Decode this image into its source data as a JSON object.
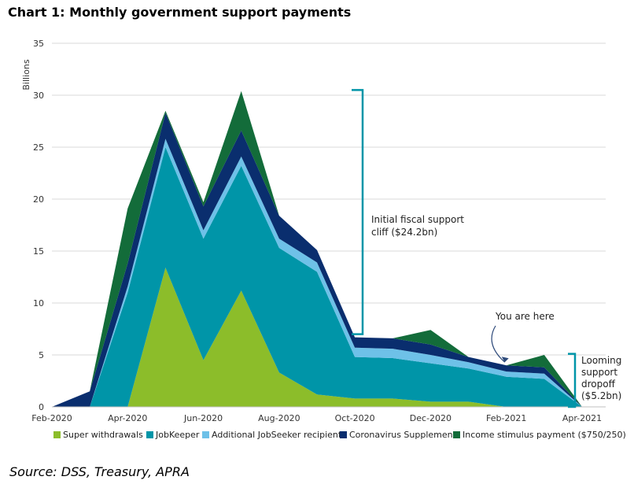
{
  "title": "Chart 1: Monthly government support payments",
  "source": "Source: DSS, Treasury, APRA",
  "chart_data": {
    "type": "area",
    "stacked": true,
    "ylabel": "Billions",
    "xlabel": "",
    "ylim": [
      0,
      35
    ],
    "yticks": [
      0,
      5,
      10,
      15,
      20,
      25,
      30,
      35
    ],
    "x": [
      "Feb-2020",
      "Mar-2020",
      "Apr-2020",
      "May-2020",
      "Jun-2020",
      "Jul-2020",
      "Aug-2020",
      "Sep-2020",
      "Oct-2020",
      "Nov-2020",
      "Dec-2020",
      "Jan-2021",
      "Feb-2021",
      "Mar-2021",
      "Apr-2021"
    ],
    "xtick_labels": [
      "Feb-2020",
      "Apr-2020",
      "Jun-2020",
      "Aug-2020",
      "Oct-2020",
      "Dec-2020",
      "Feb-2021",
      "Apr-2021"
    ],
    "grid": true,
    "legend_position": "bottom",
    "series": [
      {
        "name": "Super withdrawals",
        "color": "#8cbd2a",
        "values": [
          0,
          0,
          0,
          13.4,
          4.5,
          11.2,
          3.3,
          1.2,
          0.8,
          0.8,
          0.5,
          0.5,
          0,
          0,
          0
        ]
      },
      {
        "name": "JobKeeper",
        "color": "#0095a8",
        "values": [
          0,
          0,
          11,
          11.6,
          11.7,
          12,
          12,
          11.8,
          4,
          3.9,
          3.7,
          3.2,
          2.9,
          2.7,
          0
        ]
      },
      {
        "name": "Additional JobSeeker recipients",
        "color": "#6ec1e8",
        "values": [
          0,
          0,
          0.6,
          0.8,
          0.8,
          0.9,
          0.9,
          0.9,
          0.9,
          0.9,
          0.8,
          0.6,
          0.5,
          0.5,
          0
        ]
      },
      {
        "name": "Coronavirus Supplement",
        "color": "#0a2e6e",
        "values": [
          0,
          1.5,
          2.2,
          2.5,
          2.3,
          2.5,
          2.2,
          1.2,
          1,
          1,
          1,
          0.5,
          0.6,
          0.6,
          0
        ]
      },
      {
        "name": "Income stimulus payment ($750/250)",
        "color": "#136c3a",
        "values": [
          0,
          0,
          5.3,
          0.2,
          0.4,
          3.8,
          0,
          0,
          0,
          0,
          1.4,
          0,
          0,
          1.2,
          0
        ]
      }
    ],
    "annotations": [
      {
        "text_lines": [
          "Initial fiscal support",
          "cliff ($24.2bn)"
        ],
        "bracket_range": [
          7,
          30.5
        ],
        "bracket_color": "#0095a8"
      },
      {
        "text_lines": [
          "You are here"
        ],
        "arrow_to": "Feb-2021"
      },
      {
        "text_lines": [
          "Looming",
          "support",
          "dropoff",
          "($5.2bn)"
        ],
        "bracket_range": [
          0,
          5.1
        ],
        "bracket_color": "#0095a8"
      }
    ]
  }
}
